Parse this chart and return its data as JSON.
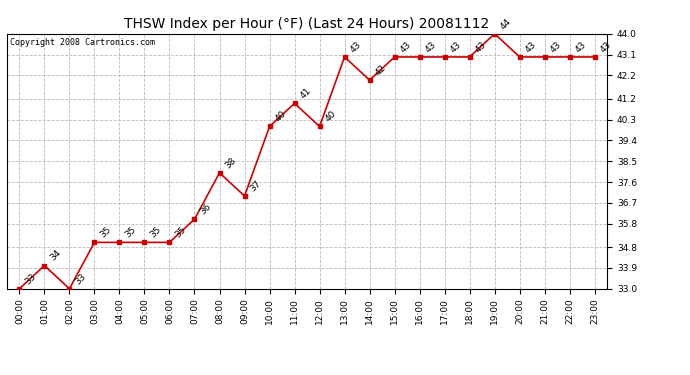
{
  "title": "THSW Index per Hour (°F) (Last 24 Hours) 20081112",
  "copyright": "Copyright 2008 Cartronics.com",
  "hours": [
    "00:00",
    "01:00",
    "02:00",
    "03:00",
    "04:00",
    "05:00",
    "06:00",
    "07:00",
    "08:00",
    "09:00",
    "10:00",
    "11:00",
    "12:00",
    "13:00",
    "14:00",
    "15:00",
    "16:00",
    "17:00",
    "18:00",
    "19:00",
    "20:00",
    "21:00",
    "22:00",
    "23:00"
  ],
  "values": [
    33,
    34,
    33,
    35,
    35,
    35,
    35,
    36,
    38,
    37,
    40,
    41,
    40,
    43,
    42,
    43,
    43,
    43,
    43,
    44,
    43,
    43,
    43,
    43
  ],
  "ylim_min": 33.0,
  "ylim_max": 44.0,
  "yticks": [
    33.0,
    33.9,
    34.8,
    35.8,
    36.7,
    37.6,
    38.5,
    39.4,
    40.3,
    41.2,
    42.2,
    43.1,
    44.0
  ],
  "line_color": "#cc0000",
  "marker_color": "#cc0000",
  "bg_color": "#ffffff",
  "grid_color": "#bbbbbb",
  "title_fontsize": 10,
  "label_fontsize": 6.5,
  "annot_fontsize": 6.5,
  "copyright_fontsize": 6
}
